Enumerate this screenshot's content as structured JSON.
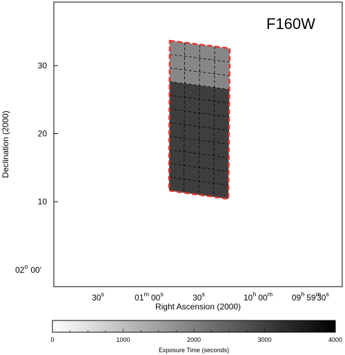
{
  "filter_label": "F160W",
  "chart_data": {
    "type": "heatmap",
    "title": "F160W",
    "xlabel": "Right Ascension (2000)",
    "ylabel": "Declination (2000)",
    "x_ticks": [
      {
        "label": "30",
        "sup": "s"
      },
      {
        "label": "01",
        "sup": "m",
        "label2": "00",
        "sup2": "s"
      },
      {
        "label": "30",
        "sup": "s"
      },
      {
        "label": "10",
        "sup": "h",
        "label2": "00",
        "sup2": "m"
      },
      {
        "label": "09",
        "sup": "h",
        "label2": "59",
        "sup2": "m"
      },
      {
        "label": "30",
        "sup": "s"
      }
    ],
    "y_ticks": [
      {
        "label": "30",
        "value": 30
      },
      {
        "label": "20",
        "value": 20
      },
      {
        "label": "10",
        "value": 10
      }
    ],
    "y_origin_label": {
      "label": "02",
      "sup": "o",
      "label2": "00'"
    },
    "regions": [
      {
        "name": "upper",
        "rows": 3,
        "cols": 4,
        "exposure": 1800,
        "color": "#878787"
      },
      {
        "name": "lower",
        "rows": 8,
        "cols": 4,
        "exposure": 3200,
        "color": "#3e3e3e"
      }
    ],
    "colorbar": {
      "title": "Exposure Time (seconds)",
      "min": 0,
      "max": 4000,
      "ticks": [
        "0",
        "1000",
        "2000",
        "3000",
        "4000"
      ],
      "color_start": "#ffffff",
      "color_end": "#000000"
    },
    "outline_color": "#e8332a"
  }
}
